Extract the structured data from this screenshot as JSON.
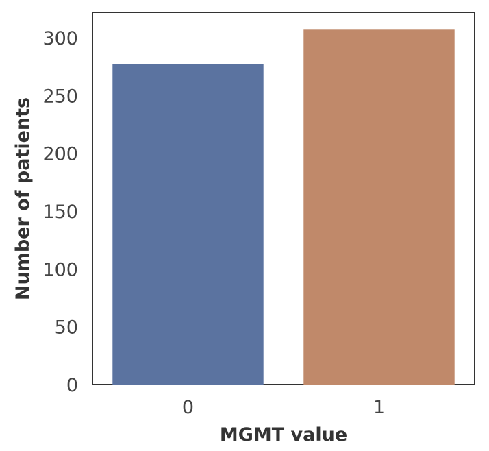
{
  "chart_data": {
    "type": "bar",
    "categories": [
      "0",
      "1"
    ],
    "values": [
      277,
      307
    ],
    "title": "",
    "xlabel": "MGMT value",
    "ylabel": "Number of patients",
    "ylim": [
      0,
      322
    ],
    "yticks": [
      0,
      50,
      100,
      150,
      200,
      250,
      300
    ],
    "grid": false,
    "colors": [
      "#5b73a0",
      "#c0896a"
    ]
  }
}
